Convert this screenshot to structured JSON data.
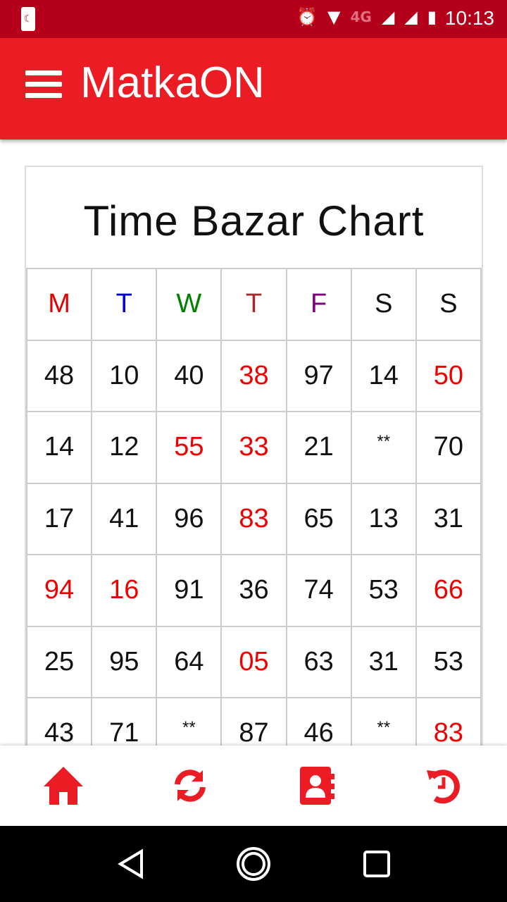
{
  "status_bar": {
    "time": "10:13",
    "network": "4G"
  },
  "app_bar": {
    "title": "MatkaON"
  },
  "chart": {
    "title": "Time Bazar Chart",
    "days": [
      {
        "label": "M",
        "color": "#e00000"
      },
      {
        "label": "T",
        "color": "#0000cc"
      },
      {
        "label": "W",
        "color": "#008000"
      },
      {
        "label": "T",
        "color": "#a52a2a"
      },
      {
        "label": "F",
        "color": "#800080"
      },
      {
        "label": "S",
        "color": "#111111"
      },
      {
        "label": "S",
        "color": "#111111"
      }
    ],
    "rows": [
      [
        {
          "v": "48"
        },
        {
          "v": "10"
        },
        {
          "v": "40"
        },
        {
          "v": "38",
          "red": true
        },
        {
          "v": "97"
        },
        {
          "v": "14"
        },
        {
          "v": "50",
          "red": true
        }
      ],
      [
        {
          "v": "14"
        },
        {
          "v": "12"
        },
        {
          "v": "55",
          "red": true
        },
        {
          "v": "33",
          "red": true
        },
        {
          "v": "21"
        },
        {
          "v": "**"
        },
        {
          "v": "70"
        }
      ],
      [
        {
          "v": "17"
        },
        {
          "v": "41"
        },
        {
          "v": "96"
        },
        {
          "v": "83",
          "red": true
        },
        {
          "v": "65"
        },
        {
          "v": "13"
        },
        {
          "v": "31"
        }
      ],
      [
        {
          "v": "94",
          "red": true
        },
        {
          "v": "16",
          "red": true
        },
        {
          "v": "91"
        },
        {
          "v": "36"
        },
        {
          "v": "74"
        },
        {
          "v": "53"
        },
        {
          "v": "66",
          "red": true
        }
      ],
      [
        {
          "v": "25"
        },
        {
          "v": "95"
        },
        {
          "v": "64"
        },
        {
          "v": "05",
          "red": true
        },
        {
          "v": "63"
        },
        {
          "v": "31"
        },
        {
          "v": "53"
        }
      ],
      [
        {
          "v": "43"
        },
        {
          "v": "71"
        },
        {
          "v": "**"
        },
        {
          "v": "87"
        },
        {
          "v": "46"
        },
        {
          "v": "**"
        },
        {
          "v": "83",
          "red": true
        }
      ]
    ]
  },
  "bottom_nav": [
    {
      "icon": "home-icon"
    },
    {
      "icon": "refresh-icon"
    },
    {
      "icon": "contacts-icon"
    },
    {
      "icon": "history-icon"
    }
  ],
  "colors": {
    "primary": "#ec1c24",
    "status": "#b5001b",
    "highlight": "#e00000"
  }
}
